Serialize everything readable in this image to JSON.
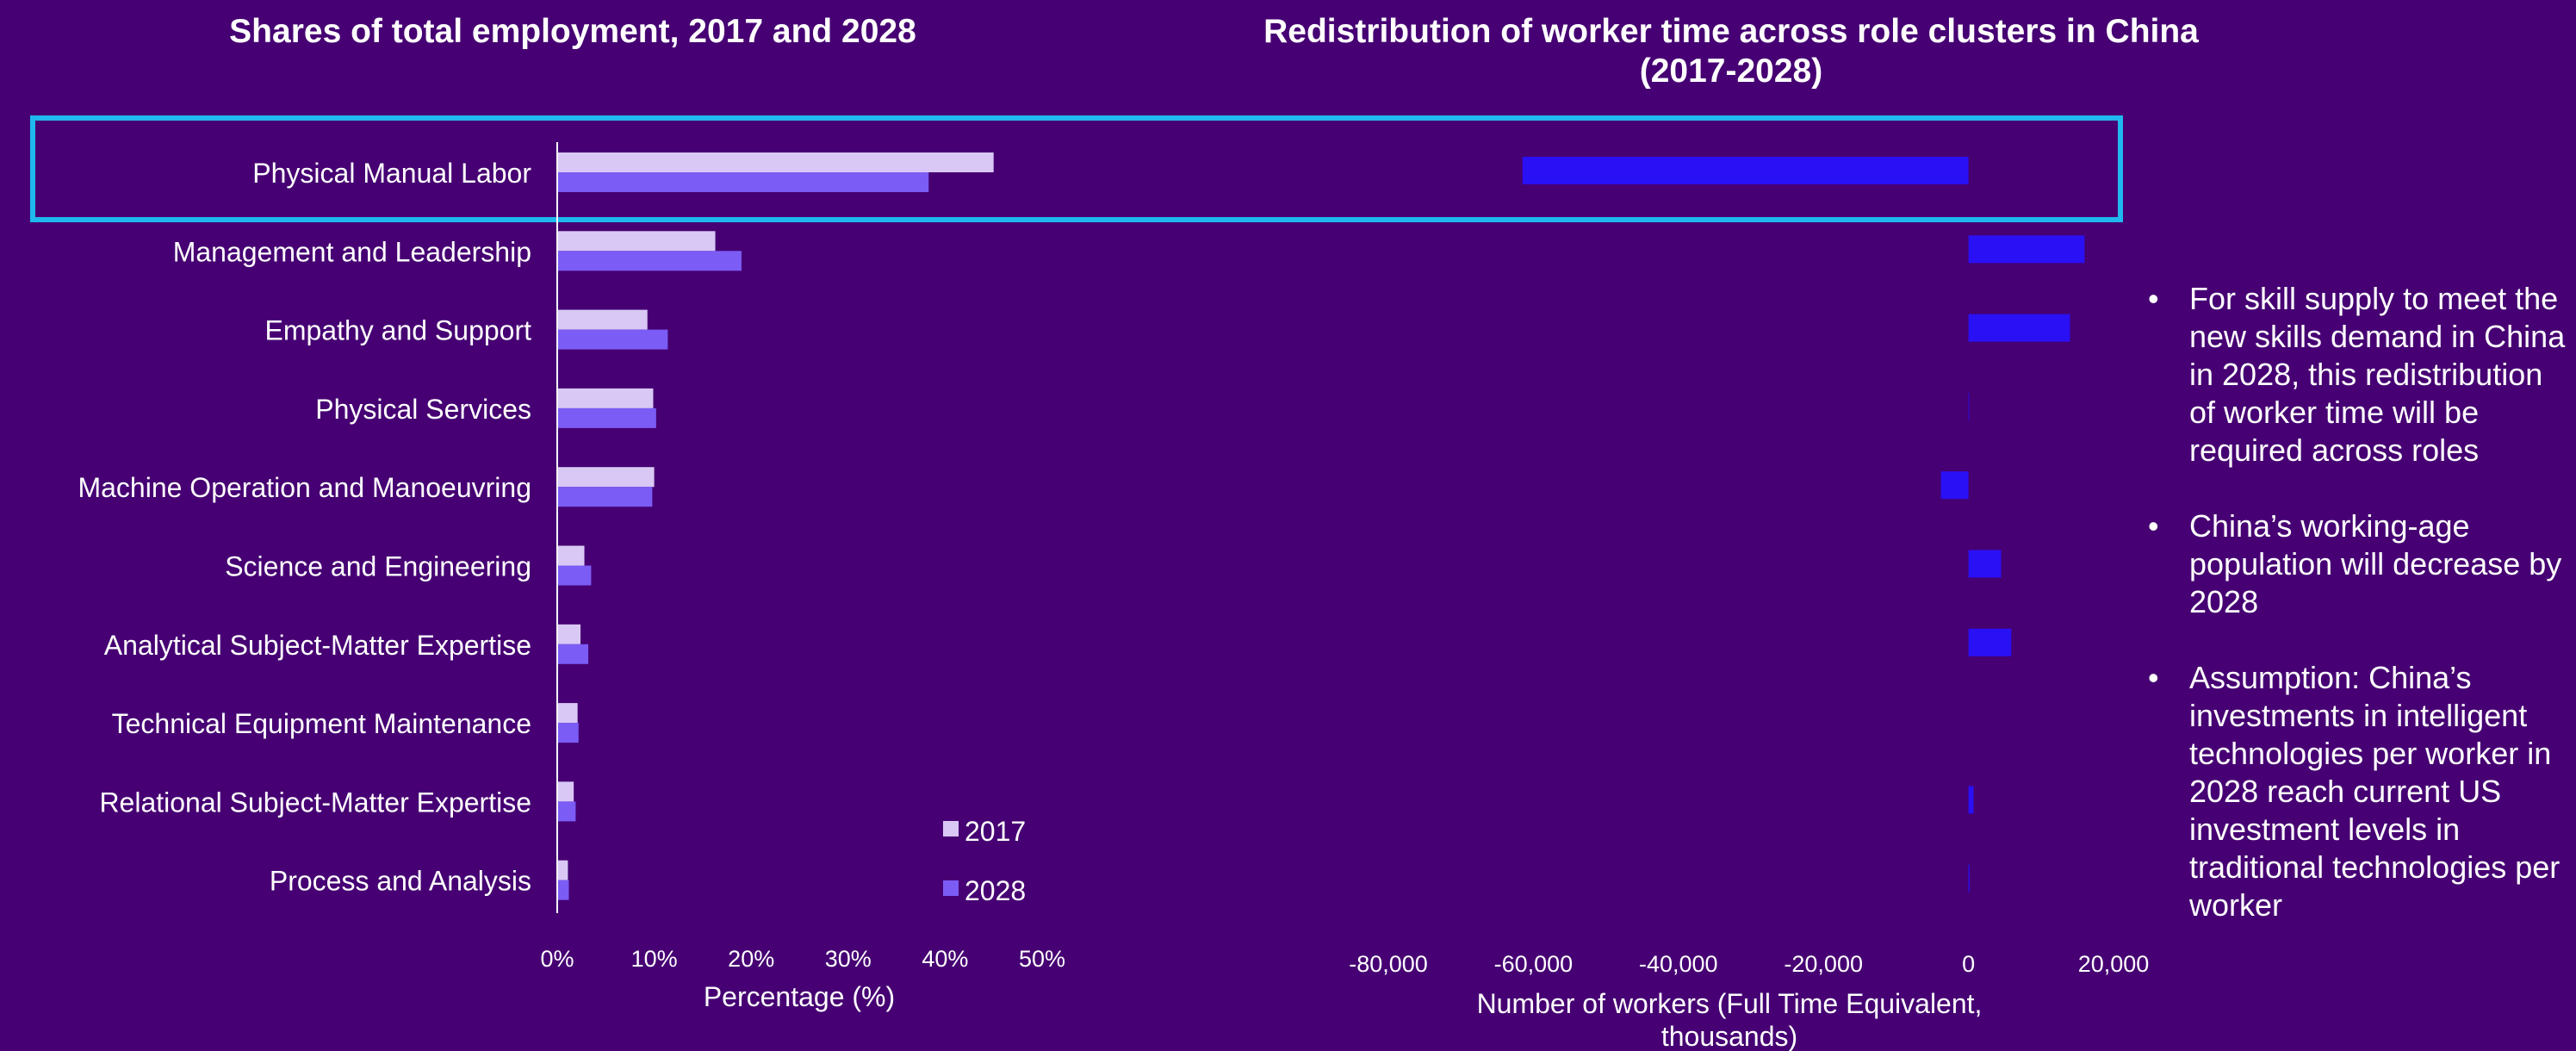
{
  "left_title": "Shares of total employment, 2017 and 2028",
  "right_title_line1": "Redistribution of worker time across role clusters in China",
  "right_title_line2": "(2017-2028)",
  "bullets": [
    "For skill supply to meet the new skills demand in China in 2028, this redistribution of worker time will be required across roles",
    "China’s working-age population will decrease by 2028",
    "Assumption: China’s investments in intelligent technologies per worker in 2028 reach current US investment levels in traditional technologies per worker"
  ],
  "colors": {
    "background": "#460073",
    "series_2017": "#d9c8f5",
    "series_2028": "#7b5cf5",
    "redistribution": "#2a10f5",
    "highlight_box": "#1fb8ef"
  },
  "chart_data": [
    {
      "type": "bar",
      "orientation": "horizontal",
      "title": "Shares of total employment, 2017 and 2028",
      "xlabel": "Percentage (%)",
      "ylabel": "",
      "xlim": [
        0,
        50
      ],
      "xticks": [
        "0%",
        "10%",
        "20%",
        "30%",
        "40%",
        "50%"
      ],
      "grid": false,
      "legend": "bottom-right",
      "categories": [
        "Physical Manual Labor",
        "Management and Leadership",
        "Empathy and Support",
        "Physical Services",
        "Machine Operation and Manoeuvring",
        "Science and Engineering",
        "Analytical Subject-Matter Expertise",
        "Technical Equipment Maintenance",
        "Relational Subject-Matter Expertise",
        "Process and Analysis"
      ],
      "series": [
        {
          "name": "2017",
          "values": [
            45,
            16.3,
            9.3,
            9.9,
            10,
            2.8,
            2.4,
            2.1,
            1.7,
            1.1
          ]
        },
        {
          "name": "2028",
          "values": [
            38.3,
            19,
            11.4,
            10.2,
            9.8,
            3.5,
            3.2,
            2.2,
            1.9,
            1.2
          ]
        }
      ],
      "highlighted_category": "Physical Manual Labor"
    },
    {
      "type": "bar",
      "orientation": "horizontal",
      "title": "Redistribution of worker time across role clusters in China (2017-2028)",
      "xlabel_line1": "Number of workers (Full Time Equivalent,",
      "xlabel_line2": "thousands)",
      "ylabel": "",
      "xlim": [
        -80000,
        20000
      ],
      "xticks": [
        "-80,000",
        "-60,000",
        "-40,000",
        "-20,000",
        "0",
        "20,000"
      ],
      "grid": false,
      "categories": [
        "Physical Manual Labor",
        "Management and Leadership",
        "Empathy and Support",
        "Physical Services",
        "Machine Operation and Manoeuvring",
        "Science and Engineering",
        "Analytical Subject-Matter Expertise",
        "Technical Equipment Maintenance",
        "Relational Subject-Matter Expertise",
        "Process and Analysis"
      ],
      "values": [
        -61500,
        16000,
        14000,
        100,
        -3800,
        4500,
        5900,
        0,
        700,
        150
      ]
    }
  ]
}
